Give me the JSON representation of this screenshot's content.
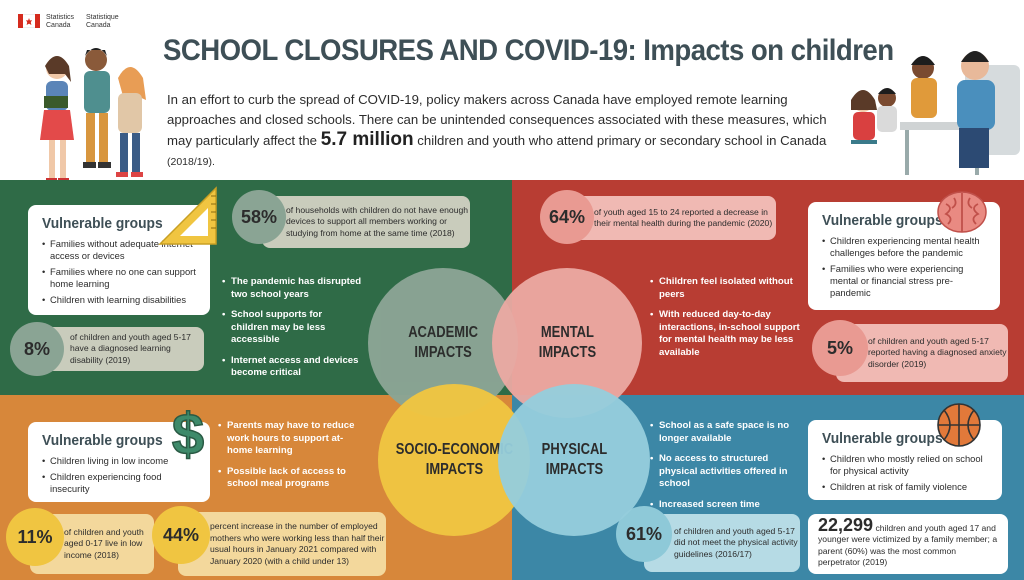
{
  "header": {
    "agency_en": "Statistics Canada",
    "agency_fr": "Statistique Canada",
    "title": "SCHOOL CLOSURES AND COVID-19: Impacts on children",
    "intro_1": "In an effort to curb the spread of COVID-19, policy makers across Canada have employed remote learning approaches and closed schools.  There can be unintended consequences associated with these measures, which may particularly affect the ",
    "intro_big": "5.7 million",
    "intro_2": " children and youth who attend primary or secondary school in Canada ",
    "intro_small": "(2018/19)."
  },
  "academic": {
    "title_1": "ACADEMIC",
    "title_2": "IMPACTS",
    "card_title": "Vulnerable groups",
    "groups": [
      "Families without adequate internet access or devices",
      "Families where no one can support home learning",
      "Children with learning disabilities"
    ],
    "stat_top_value": "58%",
    "stat_top_text": "of households with children do not have enough devices to support all members working or studying from home at the same time (2018)",
    "stat_bottom_value": "8%",
    "stat_bottom_text": "of children and youth aged 5-17 have a diagnosed learning disability (2019)",
    "bullets": [
      "The pandemic has disrupted two school years",
      "School supports for children may be less accessible",
      "Internet access and devices become critical"
    ]
  },
  "mental": {
    "title_1": "MENTAL",
    "title_2": "IMPACTS",
    "card_title": "Vulnerable groups",
    "groups": [
      "Children experiencing mental health challenges before the pandemic",
      "Families who were experiencing mental or financial stress pre-pandemic"
    ],
    "stat_top_value": "64%",
    "stat_top_text": "of youth aged 15 to 24 reported a decrease in their mental health during the pandemic (2020)",
    "stat_bottom_value": "5%",
    "stat_bottom_text": "of children and youth aged 5-17 reported having a diagnosed anxiety disorder (2019)",
    "bullets": [
      "Children feel isolated without peers",
      "With reduced day-to-day interactions, in-school support for mental health may be less available"
    ]
  },
  "socio": {
    "title_1": "SOCIO-ECONOMIC",
    "title_2": "IMPACTS",
    "card_title": "Vulnerable groups",
    "groups": [
      "Children living in low income",
      "Children experiencing food insecurity"
    ],
    "stat_a_value": "11%",
    "stat_a_text": "of children and youth aged 0-17 live in low income (2018)",
    "stat_b_value": "44%",
    "stat_b_text": "percent increase in the number of employed mothers who were working less than half their usual hours in January 2021 compared with January 2020 (with a child under 13)",
    "bullets": [
      "Parents may have to reduce work hours to support at-home learning",
      "Possible lack of access to school meal programs"
    ]
  },
  "physical": {
    "title_1": "PHYSICAL",
    "title_2": "IMPACTS",
    "card_title": "Vulnerable groups",
    "groups": [
      "Children who mostly relied on school for physical activity",
      "Children at risk of family violence"
    ],
    "stat_a_value": "61%",
    "stat_a_text": "of children and youth aged 5-17 did not meet the physical activity guidelines (2016/17)",
    "stat_b_value": "22,299",
    "stat_b_text": " children and youth aged 17 and younger were victimized by a family member; a parent (60%) was the most common perpetrator (2019)",
    "bullets": [
      "School as a safe space is no longer available",
      "No access to structured physical activities offered in school",
      "Increased screen time"
    ]
  },
  "colors": {
    "green": "#2f6b47",
    "red": "#b83d33",
    "orange": "#d7873a",
    "blue": "#3c87a6"
  },
  "icons": [
    "canada-flag-icon",
    "set-square-icon",
    "brain-icon",
    "dollar-sign-icon",
    "basketball-icon"
  ]
}
